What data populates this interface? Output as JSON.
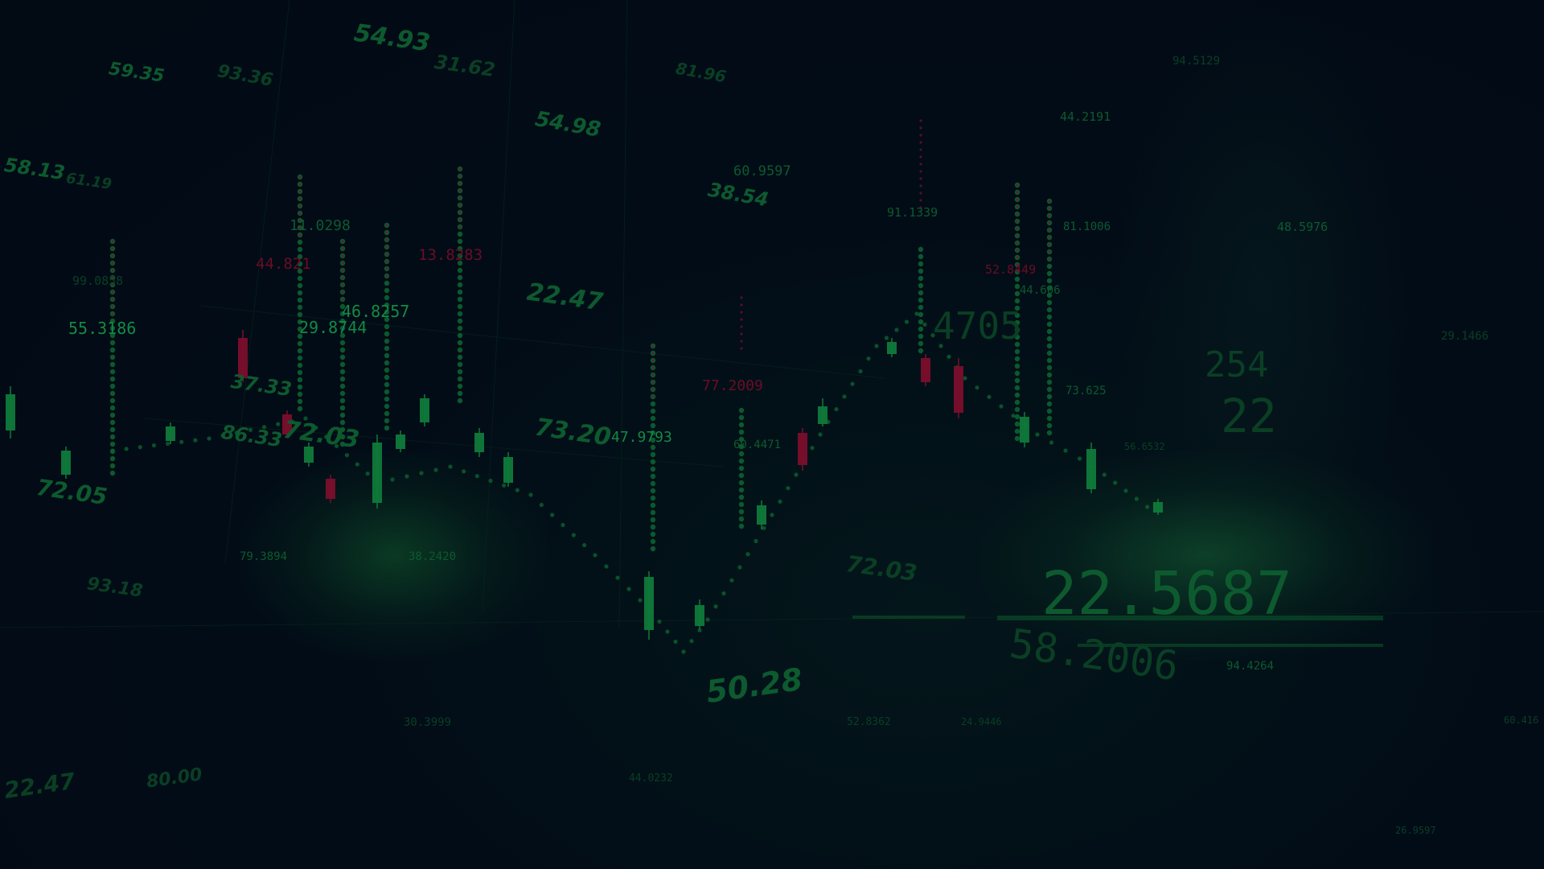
{
  "colors": {
    "background": "#020b16",
    "bull_candle": "#0f7a3a",
    "bear_candle": "#7a0f2c",
    "dotted_line": "#0c6230",
    "text_green": "#0f6a36",
    "text_red": "#6a0d26"
  },
  "numbers": [
    {
      "text": "54.93",
      "style": "italic",
      "tone": "mid"
    },
    {
      "text": "31.62",
      "style": "italic",
      "tone": "dim"
    },
    {
      "text": "59.35",
      "style": "italic",
      "tone": "mid"
    },
    {
      "text": "93.36",
      "style": "italic",
      "tone": "dim"
    },
    {
      "text": "58.13",
      "style": "italic",
      "tone": "mid"
    },
    {
      "text": "61.19",
      "style": "italic",
      "tone": "dim"
    },
    {
      "text": "54.98",
      "style": "italic",
      "tone": "mid"
    },
    {
      "text": "81.96",
      "style": "italic",
      "tone": "dim"
    },
    {
      "text": "38.54",
      "style": "italic",
      "tone": "mid"
    },
    {
      "text": "22.47",
      "style": "italic",
      "tone": "mid"
    },
    {
      "text": "72.03",
      "style": "italic",
      "tone": "mid"
    },
    {
      "text": "37.33",
      "style": "italic",
      "tone": "mid"
    },
    {
      "text": "86.33",
      "style": "italic",
      "tone": "mid"
    },
    {
      "text": "73.20",
      "style": "italic",
      "tone": "mid"
    },
    {
      "text": "72.05",
      "style": "italic",
      "tone": "mid"
    },
    {
      "text": "93.18",
      "style": "italic",
      "tone": "dim"
    },
    {
      "text": "50.28",
      "style": "italic",
      "tone": "mid"
    },
    {
      "text": "22.47",
      "style": "italic",
      "tone": "dim"
    },
    {
      "text": "80.00",
      "style": "italic",
      "tone": "dim"
    },
    {
      "text": "72.03",
      "style": "italic",
      "tone": "dim"
    },
    {
      "text": "55.3186",
      "style": "thin",
      "tone": "bright"
    },
    {
      "text": "99.0858",
      "style": "thin",
      "tone": "dim"
    },
    {
      "text": "11.0298",
      "style": "thin",
      "tone": "mid"
    },
    {
      "text": "44.821",
      "style": "thin",
      "tone": "red"
    },
    {
      "text": "13.8283",
      "style": "thin",
      "tone": "red"
    },
    {
      "text": "46.8257",
      "style": "thin",
      "tone": "bright"
    },
    {
      "text": "29.8744",
      "style": "thin",
      "tone": "bright"
    },
    {
      "text": "60.9597",
      "style": "thin",
      "tone": "mid"
    },
    {
      "text": "91.1339",
      "style": "thin",
      "tone": "mid"
    },
    {
      "text": "44.2191",
      "style": "thin",
      "tone": "mid"
    },
    {
      "text": "94.5129",
      "style": "thin",
      "tone": "dim"
    },
    {
      "text": "81.1006",
      "style": "thin",
      "tone": "mid"
    },
    {
      "text": "48.5976",
      "style": "thin",
      "tone": "mid"
    },
    {
      "text": "52.8449",
      "style": "thin",
      "tone": "red"
    },
    {
      "text": "44.606",
      "style": "thin",
      "tone": "mid"
    },
    {
      "text": "47.9793",
      "style": "thin",
      "tone": "bright"
    },
    {
      "text": "77.2009",
      "style": "thin",
      "tone": "red"
    },
    {
      "text": "60.4471",
      "style": "thin",
      "tone": "mid"
    },
    {
      "text": "73.625",
      "style": "thin",
      "tone": "mid"
    },
    {
      "text": "29.1466",
      "style": "thin",
      "tone": "dim"
    },
    {
      "text": "56.6532",
      "style": "thin",
      "tone": "dim"
    },
    {
      "text": "79.3894",
      "style": "thin",
      "tone": "mid"
    },
    {
      "text": "38.2420",
      "style": "thin",
      "tone": "mid"
    },
    {
      "text": "52.8362",
      "style": "thin",
      "tone": "dim"
    },
    {
      "text": "24.9446",
      "style": "thin",
      "tone": "dim"
    },
    {
      "text": "94.4264",
      "style": "thin",
      "tone": "mid"
    },
    {
      "text": "44.0232",
      "style": "thin",
      "tone": "dim"
    },
    {
      "text": "60.416",
      "style": "thin",
      "tone": "dim"
    },
    {
      "text": "26.9597",
      "style": "thin",
      "tone": "dim"
    },
    {
      "text": "30.3999",
      "style": "thin",
      "tone": "dim"
    },
    {
      "text": "4705",
      "style": "thin",
      "tone": "dim"
    },
    {
      "text": "22",
      "style": "thin",
      "tone": "dim"
    },
    {
      "text": "254",
      "style": "thin",
      "tone": "dim"
    },
    {
      "text": "22.5687",
      "style": "thin",
      "tone": "mid"
    },
    {
      "text": "58.2006",
      "style": "thin",
      "tone": "dim"
    }
  ]
}
